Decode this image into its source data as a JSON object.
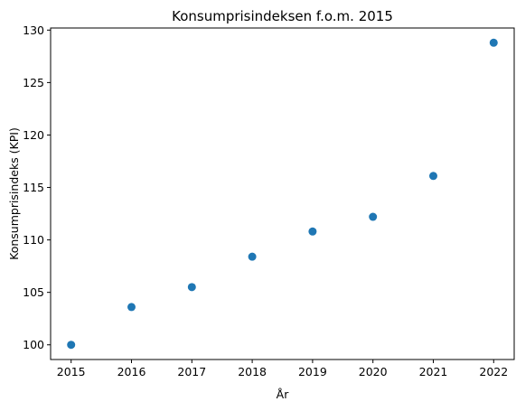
{
  "chart_data": {
    "type": "scatter",
    "title": "Konsumprisindeksen f.o.m. 2015",
    "xlabel": "År",
    "ylabel": "Konsumprisindeks (KPI)",
    "x": [
      2015,
      2016,
      2017,
      2018,
      2019,
      2020,
      2021,
      2022
    ],
    "y": [
      100.0,
      103.6,
      105.5,
      108.4,
      110.8,
      112.2,
      116.1,
      128.8
    ],
    "xlim": [
      2014.66,
      2022.34
    ],
    "ylim": [
      98.6,
      130.2
    ],
    "xticks": [
      "2015",
      "2016",
      "2017",
      "2018",
      "2019",
      "2020",
      "2021",
      "2022"
    ],
    "yticks": [
      "100",
      "105",
      "110",
      "115",
      "120",
      "125",
      "130"
    ],
    "marker_color": "#1f77b4",
    "grid": false,
    "legend": "none"
  }
}
